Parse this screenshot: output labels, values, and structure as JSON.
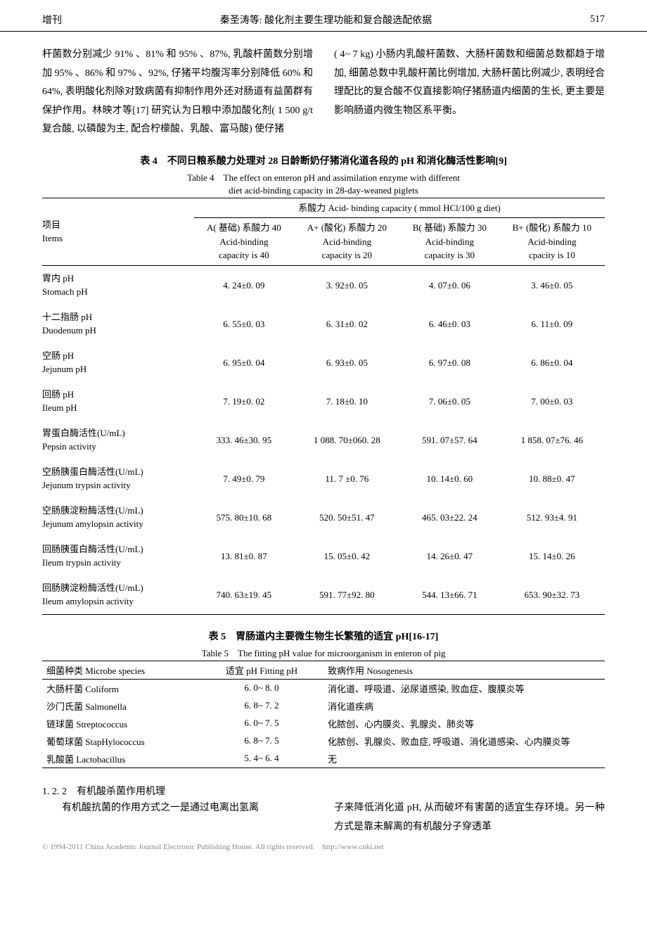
{
  "header": {
    "issue": "增刊",
    "running_title": "秦圣涛等: 酸化剂主要生理功能和复合酸选配依据",
    "page_number": "517"
  },
  "paragraphs": {
    "left": "杆菌数分别减少 91% 、81% 和 95% 、87%, 乳酸杆菌数分别增加 95% 、86% 和 97% 、92%, 仔猪平均腹泻率分别降低 60% 和 64%, 表明酸化剂除对致病菌有抑制作用外还对肠道有益菌群有保护作用。林映才等[17] 研究认为日粮中添加酸化剂( 1 500 g/t 复合酸, 以磷酸为主, 配合柠檬酸、乳酸、富马酸) 使仔猪",
    "right": "( 4~ 7 kg) 小肠内乳酸杆菌数、大肠杆菌数和细菌总数都趋于增加, 细菌总数中乳酸杆菌比例增加, 大肠杆菌比例减少, 表明经合理配比的复合酸不仅直接影响仔猪肠道内细菌的生长, 更主要是影响肠道内微生物区系平衡。"
  },
  "table4": {
    "title_cn": "表 4　不同日粮系酸力处理对 28 日龄断奶仔猪消化道各段的 pH 和消化酶活性影响[9]",
    "title_en1": "Table 4　The effect on enteron pH and assimilation enzyme with different",
    "title_en2": "diet acid-binding capacity in 28-day-weaned piglets",
    "header_group": "系酸力 Acid- binding capacity ( mmol HCl/100 g diet)",
    "items_label_cn": "项目",
    "items_label_en": "Items",
    "columns": [
      {
        "cn": "A( 基础) 系酸力 40",
        "en1": "Acid-binding",
        "en2": "capacity is 40"
      },
      {
        "cn": "A+ (酸化) 系酸力 20",
        "en1": "Acid-binding",
        "en2": "capacity is 20"
      },
      {
        "cn": "B( 基础) 系酸力 30",
        "en1": "Acid-binding",
        "en2": "capacity is 30"
      },
      {
        "cn": "B+ (酸化) 系酸力 10",
        "en1": "Acid-binding",
        "en2": "cpacity is 10"
      }
    ],
    "rows": [
      {
        "cn": "胃内 pH",
        "en": "Stomach pH",
        "v": [
          "4. 24±0. 09",
          "3. 92±0. 05",
          "4. 07±0. 06",
          "3. 46±0. 05"
        ]
      },
      {
        "cn": "十二指肠 pH",
        "en": "Duodenum pH",
        "v": [
          "6. 55±0. 03",
          "6. 31±0. 02",
          "6. 46±0. 03",
          "6. 11±0. 09"
        ]
      },
      {
        "cn": "空肠 pH",
        "en": "Jejunum pH",
        "v": [
          "6. 95±0. 04",
          "6. 93±0. 05",
          "6. 97±0. 08",
          "6. 86±0. 04"
        ]
      },
      {
        "cn": "回肠 pH",
        "en": "Ileum pH",
        "v": [
          "7. 19±0. 02",
          "7. 18±0. 10",
          "7. 06±0. 05",
          "7. 00±0. 03"
        ]
      },
      {
        "cn": "胃蛋白酶活性(U/mL)",
        "en": "Pepsin activity",
        "v": [
          "333. 46±30. 95",
          "1 088. 70±060. 28",
          "591. 07±57. 64",
          "1 858. 07±76. 46"
        ]
      },
      {
        "cn": "空肠胰蛋白酶活性(U/mL)",
        "en": "Jejunum trypsin activity",
        "v": [
          "7. 49±0. 79",
          "11. 7 ±0. 76",
          "10. 14±0. 60",
          "10. 88±0. 47"
        ]
      },
      {
        "cn": "空肠胰淀粉酶活性(U/mL)",
        "en": "Jejunum amylopsin activity",
        "v": [
          "575. 80±10. 68",
          "520. 50±51. 47",
          "465. 03±22. 24",
          "512. 93±4. 91"
        ]
      },
      {
        "cn": "回肠胰蛋白酶活性(U/mL)",
        "en": "Ileum trypsin activity",
        "v": [
          "13. 81±0. 87",
          "15. 05±0. 42",
          "14. 26±0. 47",
          "15. 14±0. 26"
        ]
      },
      {
        "cn": "回肠胰淀粉酶活性(U/mL)",
        "en": "Ileum amylopsin activity",
        "v": [
          "740. 63±19. 45",
          "591. 77±92. 80",
          "544. 13±66. 71",
          "653. 90±32. 73"
        ]
      }
    ]
  },
  "table5": {
    "title_cn": "表 5　胃肠道内主要微生物生长繁殖的适宜 pH[16-17]",
    "title_en": "Table 5　The fitting pH value for microorganism in enteron of pig",
    "headers": {
      "species": "细菌种类 Microbe species",
      "ph": "适宜 pH Fitting pH",
      "nosogenesis": "致病作用 Nosogenesis"
    },
    "rows": [
      {
        "species": "大肠杆菌 Coliform",
        "ph": "6. 0~ 8. 0",
        "noso": "消化道、呼吸道、泌尿道感染, 败血症、腹膜炎等"
      },
      {
        "species": "沙门氏菌 Salmonella",
        "ph": "6. 8~ 7. 2",
        "noso": "消化道疾病"
      },
      {
        "species": "链球菌 Streptococcus",
        "ph": "6. 0~ 7. 5",
        "noso": "化脓创、心内膜炎、乳腺炎、肺炎等"
      },
      {
        "species": "葡萄球菌 StapHylococcus",
        "ph": "6. 8~ 7. 5",
        "noso": "化脓创、乳腺炎、败血症, 呼吸道、消化道感染、心内膜炎等"
      },
      {
        "species": "乳酸菌 Lactobacillus",
        "ph": "5. 4~ 6. 4",
        "noso": "无"
      }
    ]
  },
  "section": {
    "heading": "1. 2. 2　有机酸杀菌作用机理",
    "bottom_left": "　　有机酸抗菌的作用方式之一是通过电离出氢离",
    "bottom_right": "子来降低消化道 pH, 从而破坏有害菌的适宜生存环境。另一种方式是靠未解离的有机酸分子穿透革"
  },
  "footer": "© 1994-2011 China Academic Journal Electronic Publishing House. All rights reserved.　http://www.cnki.net"
}
